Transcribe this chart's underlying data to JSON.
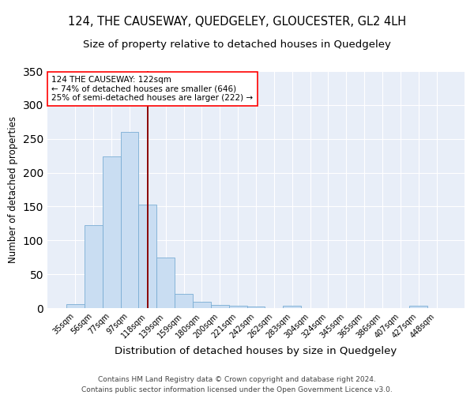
{
  "title": "124, THE CAUSEWAY, QUEDGELEY, GLOUCESTER, GL2 4LH",
  "subtitle": "Size of property relative to detached houses in Quedgeley",
  "xlabel": "Distribution of detached houses by size in Quedgeley",
  "ylabel": "Number of detached properties",
  "footer_line1": "Contains HM Land Registry data © Crown copyright and database right 2024.",
  "footer_line2": "Contains public sector information licensed under the Open Government Licence v3.0.",
  "bar_labels": [
    "35sqm",
    "56sqm",
    "77sqm",
    "97sqm",
    "118sqm",
    "139sqm",
    "159sqm",
    "180sqm",
    "200sqm",
    "221sqm",
    "242sqm",
    "262sqm",
    "283sqm",
    "304sqm",
    "324sqm",
    "345sqm",
    "365sqm",
    "386sqm",
    "407sqm",
    "427sqm",
    "448sqm"
  ],
  "bar_values": [
    6,
    122,
    224,
    260,
    153,
    75,
    21,
    9,
    5,
    3,
    2,
    0,
    4,
    0,
    0,
    0,
    0,
    0,
    0,
    3,
    0
  ],
  "bar_color": "#c9ddf2",
  "bar_edge_color": "#7aadd4",
  "bg_color": "#e8eef8",
  "grid_color": "#ffffff",
  "vline_color": "#8b0000",
  "annotation_line1": "124 THE CAUSEWAY: 122sqm",
  "annotation_line2": "← 74% of detached houses are smaller (646)",
  "annotation_line3": "25% of semi-detached houses are larger (222) →",
  "ylim_max": 350,
  "yticks": [
    0,
    50,
    100,
    150,
    200,
    250,
    300,
    350
  ],
  "vline_bin_index": 4.0,
  "title_fontsize": 10.5,
  "subtitle_fontsize": 9.5,
  "xlabel_fontsize": 9.5,
  "ylabel_fontsize": 8.5,
  "tick_fontsize": 7,
  "annotation_fontsize": 7.5,
  "footer_fontsize": 6.5
}
